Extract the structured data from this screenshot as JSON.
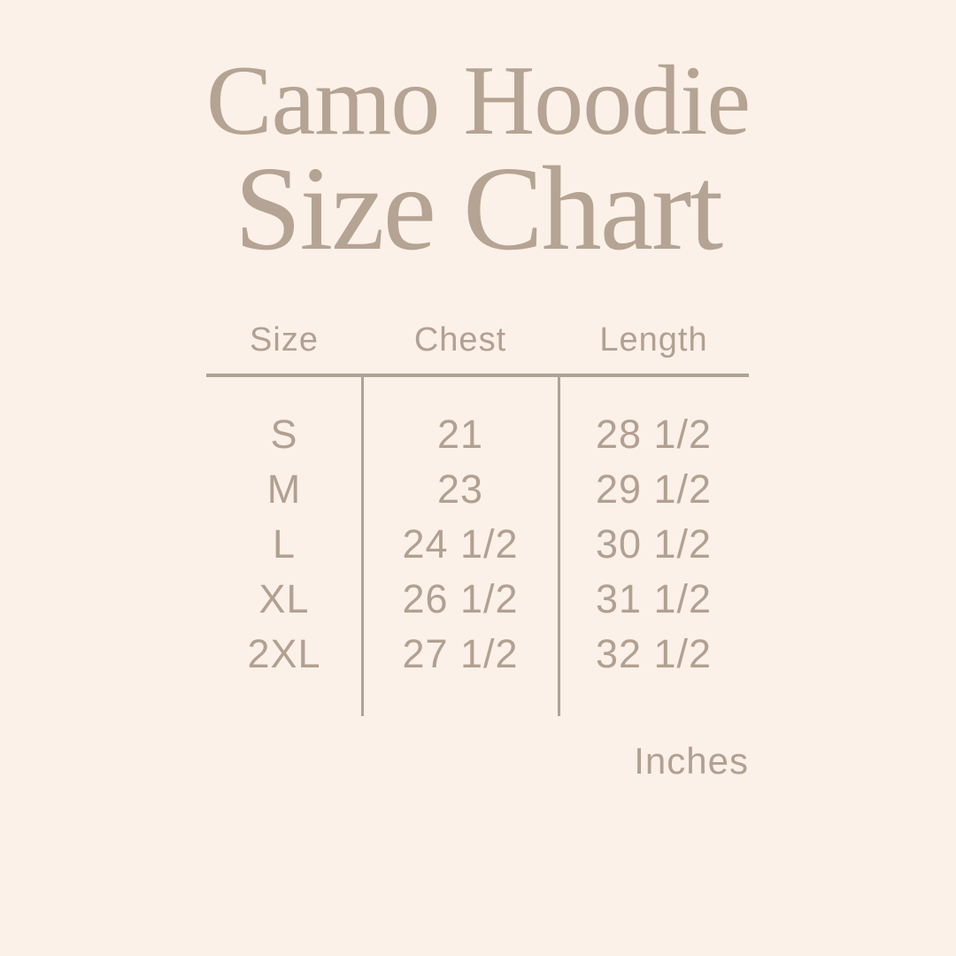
{
  "page": {
    "background_color": "#fcf1e8",
    "text_color": "#b2a091",
    "line_color": "#b0a295"
  },
  "title": {
    "line1": "Camo Hoodie",
    "line2": "Size Chart"
  },
  "chart_data": {
    "type": "table",
    "title": "Camo Hoodie Size Chart",
    "columns": [
      "Size",
      "Chest",
      "Length"
    ],
    "rows": [
      {
        "size": "S",
        "chest": "21",
        "length": "28 1/2"
      },
      {
        "size": "M",
        "chest": "23",
        "length": "29 1/2"
      },
      {
        "size": "L",
        "chest": "24 1/2",
        "length": "30 1/2"
      },
      {
        "size": "XL",
        "chest": "26 1/2",
        "length": "31 1/2"
      },
      {
        "size": "2XL",
        "chest": "27 1/2",
        "length": "32 1/2"
      }
    ],
    "unit_label": "Inches"
  }
}
